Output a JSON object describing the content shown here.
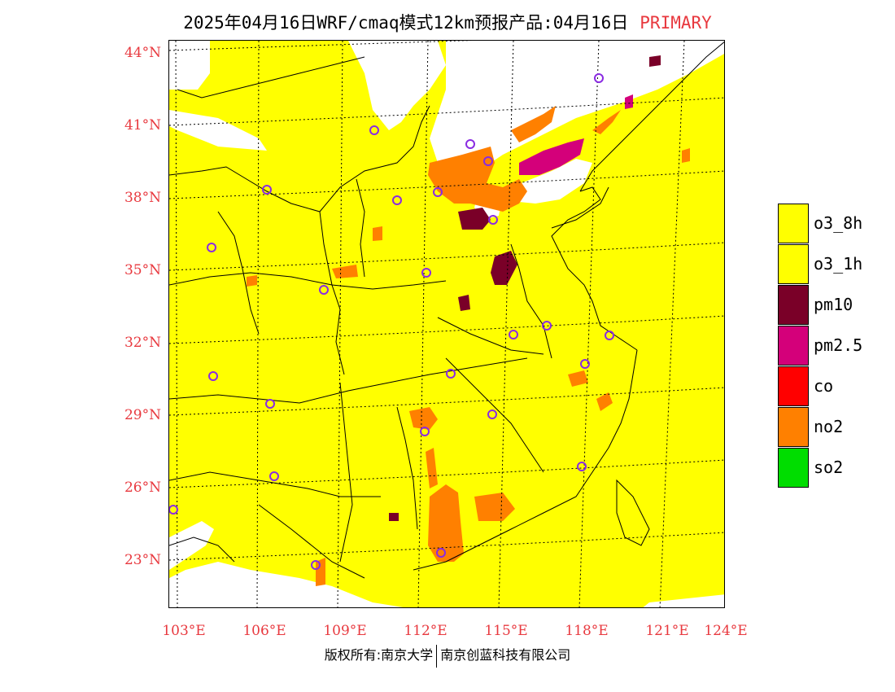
{
  "title": {
    "main": "2025年04月16日WRF/cmaq模式12km预报产品:04月16日",
    "tag": "PRIMARY"
  },
  "axes": {
    "latitudes": [
      "44°N",
      "41°N",
      "38°N",
      "35°N",
      "32°N",
      "29°N",
      "26°N",
      "23°N"
    ],
    "longitudes": [
      "103°E",
      "106°E",
      "109°E",
      "112°E",
      "115°E",
      "118°E",
      "121°E",
      "124°E"
    ]
  },
  "legend": {
    "items": [
      {
        "label": "o3_8h",
        "color": "#ffff00"
      },
      {
        "label": "o3_1h",
        "color": "#ffff00"
      },
      {
        "label": "pm10",
        "color": "#7a0028"
      },
      {
        "label": "pm2.5",
        "color": "#d4007a"
      },
      {
        "label": "co",
        "color": "#ff0000"
      },
      {
        "label": "no2",
        "color": "#ff8000"
      },
      {
        "label": "so2",
        "color": "#00dd00"
      }
    ]
  },
  "colors": {
    "background_fill": "#ffff00",
    "station_marker": "#8a2be2",
    "grid": "#000000"
  },
  "copyright": {
    "left": "版权所有:南京大学",
    "right": "南京创蓝科技有限公司"
  }
}
